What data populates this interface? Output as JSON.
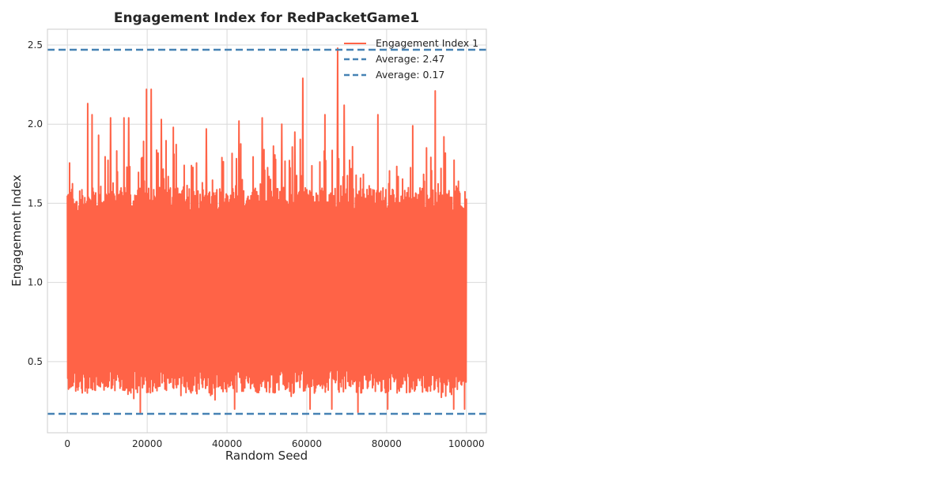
{
  "chart_data": {
    "type": "line",
    "title": "Engagement Index for RedPacketGame1",
    "xlabel": "Random Seed",
    "ylabel": "Engagement Index",
    "xlim": [
      -5000,
      105000
    ],
    "ylim": [
      0.05,
      2.6
    ],
    "xticks": [
      0,
      20000,
      40000,
      60000,
      80000,
      100000
    ],
    "xtick_labels": [
      "0",
      "20000",
      "40000",
      "60000",
      "80000",
      "100000"
    ],
    "yticks": [
      0.5,
      1.0,
      1.5,
      2.0,
      2.5
    ],
    "ytick_labels": [
      "0.5",
      "1.0",
      "1.5",
      "2.0",
      "2.5"
    ],
    "grid": true,
    "legend_position": "top-right",
    "colors": {
      "series": "#ff6347",
      "reference": "#4682b4",
      "grid": "#d9d9d9",
      "spine": "#cccccc"
    },
    "series": [
      {
        "name": "Engagement Index 1",
        "x_start": 0,
        "x_end": 100000,
        "band_low": [
          0.3,
          0.45
        ],
        "band_high": [
          1.45,
          1.6
        ],
        "mean": 0.95,
        "peaks": [
          {
            "x": 5100,
            "y": 2.13
          },
          {
            "x": 6200,
            "y": 2.06
          },
          {
            "x": 7800,
            "y": 1.93
          },
          {
            "x": 10800,
            "y": 2.04
          },
          {
            "x": 14200,
            "y": 2.04
          },
          {
            "x": 15400,
            "y": 2.04
          },
          {
            "x": 19800,
            "y": 2.22
          },
          {
            "x": 21000,
            "y": 2.22
          },
          {
            "x": 23500,
            "y": 2.03
          },
          {
            "x": 26500,
            "y": 1.98
          },
          {
            "x": 34800,
            "y": 1.97
          },
          {
            "x": 43000,
            "y": 2.02
          },
          {
            "x": 48800,
            "y": 2.04
          },
          {
            "x": 53700,
            "y": 2.0
          },
          {
            "x": 57000,
            "y": 1.95
          },
          {
            "x": 59000,
            "y": 2.29
          },
          {
            "x": 64500,
            "y": 2.06
          },
          {
            "x": 67700,
            "y": 2.48
          },
          {
            "x": 69400,
            "y": 2.12
          },
          {
            "x": 77800,
            "y": 2.06
          },
          {
            "x": 86500,
            "y": 1.99
          },
          {
            "x": 92200,
            "y": 2.21
          },
          {
            "x": 94400,
            "y": 1.92
          }
        ],
        "troughs": [
          {
            "x": 18200,
            "y": 0.17
          },
          {
            "x": 41800,
            "y": 0.2
          },
          {
            "x": 60800,
            "y": 0.2
          },
          {
            "x": 66200,
            "y": 0.2
          },
          {
            "x": 72800,
            "y": 0.18
          },
          {
            "x": 80300,
            "y": 0.2
          },
          {
            "x": 96700,
            "y": 0.2
          },
          {
            "x": 99500,
            "y": 0.2
          }
        ]
      }
    ],
    "reference_lines": [
      {
        "name": "Average: 2.47",
        "y": 2.47
      },
      {
        "name": "Average: 0.17",
        "y": 0.17
      }
    ]
  }
}
